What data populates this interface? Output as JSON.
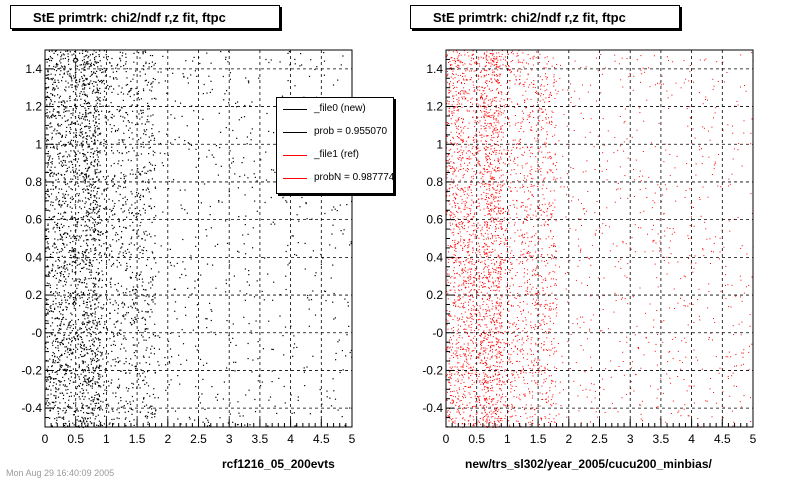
{
  "colors": {
    "new": "#000000",
    "ref": "#ff0000"
  },
  "footer_stamp": "Mon Aug 29 16:40:09 2005",
  "chart_data": [
    {
      "type": "scatter",
      "title": "StE primtrk: chi2/ndf r,z fit, ftpc",
      "xlabel": "rcf1216_05_200evts",
      "ylabel": "",
      "xlim": [
        0,
        5
      ],
      "ylim": [
        -0.5,
        1.5
      ],
      "x_ticks": [
        "0",
        "0.5",
        "1",
        "1.5",
        "2",
        "2.5",
        "3",
        "3.5",
        "4",
        "4.5",
        "5"
      ],
      "y_ticks": [
        "-0.4",
        "-0.2",
        "-0",
        "0.2",
        "0.4",
        "0.6",
        "0.8",
        "1",
        "1.2",
        "1.4"
      ],
      "grid": true,
      "marker_color": "#000000",
      "legend": {
        "position": "top-right",
        "entries": [
          {
            "label": "_file0 (new)",
            "color": "#000000"
          },
          {
            "label": "prob = 0.955070",
            "color": "#000000"
          },
          {
            "label": "_file1 (ref)",
            "color": "#ff0000"
          },
          {
            "label": "probN = 0.987774",
            "color": "#ff0000"
          }
        ]
      },
      "points_desc": "dense uniform in y over [-0.5,1.5], density decreasing with x (high for x<1, sparse beyond 3)"
    },
    {
      "type": "scatter",
      "title": "StE primtrk: chi2/ndf r,z fit, ftpc",
      "xlabel": "new/trs_sl302/year_2005/cucu200_minbias/",
      "ylabel": "",
      "xlim": [
        0,
        5
      ],
      "ylim": [
        -0.5,
        1.5
      ],
      "x_ticks": [
        "0",
        "0.5",
        "1",
        "1.5",
        "2",
        "2.5",
        "3",
        "3.5",
        "4",
        "4.5",
        "5"
      ],
      "y_ticks": [
        "-0.4",
        "-0.2",
        "-0",
        "0.2",
        "0.4",
        "0.6",
        "0.8",
        "1",
        "1.2",
        "1.4"
      ],
      "grid": true,
      "marker_color": "#ff0000",
      "legend": null
    }
  ]
}
